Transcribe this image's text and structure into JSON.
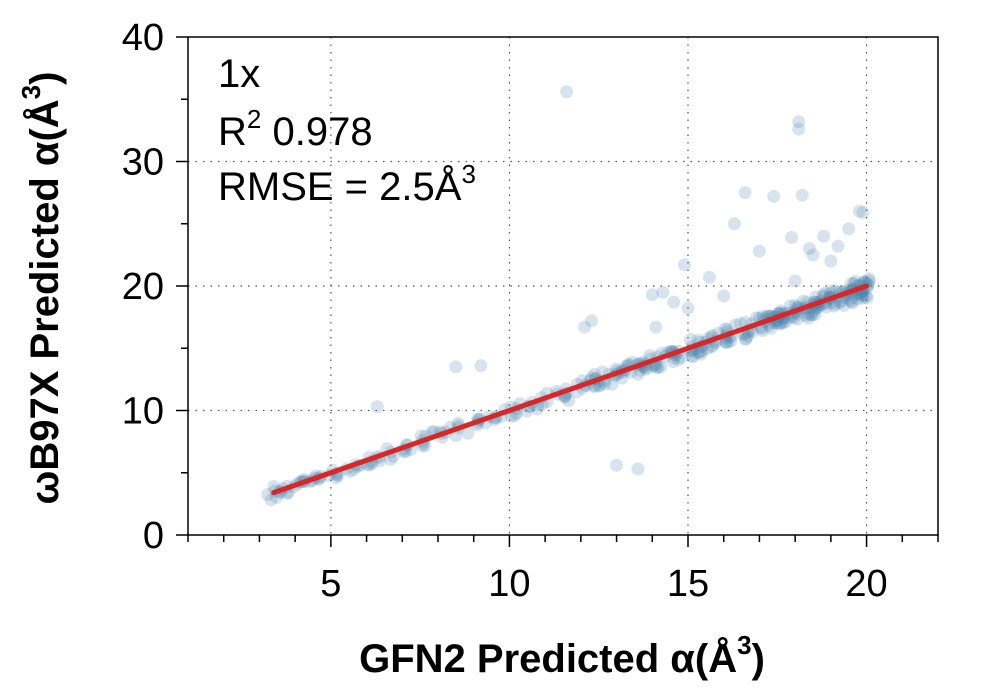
{
  "chart_data": {
    "type": "scatter",
    "title": "",
    "xlabel": "GFN2 Predicted α(Å",
    "xlabel_sup": "3",
    "xlabel_end": ")",
    "ylabel": "ωB97X Predicted α(Å",
    "ylabel_sup": "3",
    "ylabel_end": ")",
    "xlim": [
      1,
      22
    ],
    "ylim": [
      0,
      40
    ],
    "xticks": [
      5,
      10,
      15,
      20
    ],
    "yticks": [
      0,
      10,
      20,
      30,
      40
    ],
    "xtick_labels": [
      "5",
      "10",
      "15",
      "20"
    ],
    "ytick_labels": [
      "0",
      "10",
      "20",
      "30",
      "40"
    ],
    "x_minor_step": 1,
    "y_minor_step": 5,
    "grid": true,
    "grid_style": "dotted",
    "annotations": {
      "line1": "1x",
      "line2_prefix": "R",
      "line2_sup": "2",
      "line2_suffix": " 0.978",
      "line3_prefix": "RMSE = 2.5Å",
      "line3_sup": "3"
    },
    "colors": {
      "points": "#4a86ad",
      "fit_line": "#d92626",
      "grid": "#555555",
      "axes": "#000000"
    },
    "fit_line": {
      "x": [
        3.4,
        20
      ],
      "y": [
        3.4,
        20
      ]
    },
    "points_main": {
      "x": [
        3.4,
        3.5,
        3.7,
        3.9,
        4.1,
        4.3,
        4.5,
        4.7,
        5.0,
        5.2,
        5.5,
        5.7,
        6.0,
        6.2,
        6.5,
        6.7,
        7.0,
        7.2,
        7.5,
        7.7,
        8.0,
        8.2,
        8.5,
        8.7,
        9.0,
        9.2,
        9.5,
        9.7,
        10.0,
        10.2,
        10.5,
        10.7,
        11.0,
        11.2,
        11.5,
        11.7,
        12.0,
        12.2,
        12.5,
        12.7,
        13.0,
        13.2,
        13.5,
        13.7,
        14.0,
        14.2,
        14.5,
        14.7,
        15.0,
        15.2,
        15.5,
        15.7,
        16.0,
        16.2,
        16.5,
        16.7,
        17.0,
        17.2,
        17.5,
        17.7,
        18.0,
        18.2,
        18.5,
        18.7,
        19.0,
        19.2,
        19.5,
        19.7,
        19.9,
        20.0
      ],
      "y": [
        3.0,
        3.4,
        3.6,
        3.9,
        4.2,
        4.4,
        4.5,
        4.7,
        4.9,
        5.0,
        5.3,
        5.5,
        5.8,
        6.0,
        6.3,
        6.6,
        6.9,
        7.1,
        7.4,
        7.6,
        7.9,
        8.1,
        8.4,
        8.6,
        8.9,
        9.1,
        9.4,
        9.6,
        9.9,
        10.1,
        10.3,
        10.6,
        10.8,
        11.1,
        11.3,
        11.6,
        11.9,
        12.1,
        12.4,
        12.6,
        12.9,
        13.1,
        13.4,
        13.6,
        13.9,
        14.1,
        14.4,
        14.6,
        14.9,
        15.1,
        15.4,
        15.6,
        15.9,
        16.1,
        16.4,
        16.6,
        16.9,
        17.1,
        17.4,
        17.6,
        17.9,
        18.1,
        18.4,
        18.6,
        18.9,
        19.1,
        19.4,
        19.6,
        19.8,
        20.0
      ]
    },
    "points_outliers": {
      "x": [
        3.4,
        6.3,
        8.5,
        9.2,
        11.6,
        12.1,
        12.3,
        13.0,
        13.6,
        14.0,
        14.3,
        14.6,
        14.9,
        15.6,
        16.3,
        16.6,
        17.4,
        17.9,
        18.1,
        18.1,
        18.2,
        18.5,
        18.8,
        19.2,
        19.5,
        19.8,
        19.9,
        14.1,
        15.0,
        16.0,
        17.0,
        18.0,
        19.0,
        17.6,
        18.4
      ],
      "y": [
        3.9,
        10.3,
        13.5,
        13.6,
        35.6,
        16.7,
        17.2,
        5.6,
        5.3,
        19.3,
        19.5,
        18.7,
        21.7,
        20.7,
        25.0,
        27.5,
        27.2,
        23.9,
        33.2,
        32.6,
        27.3,
        22.5,
        24.0,
        23.2,
        24.6,
        26.0,
        25.9,
        16.7,
        18.2,
        19.2,
        22.8,
        20.4,
        22.0,
        18.0,
        23.0
      ]
    }
  }
}
